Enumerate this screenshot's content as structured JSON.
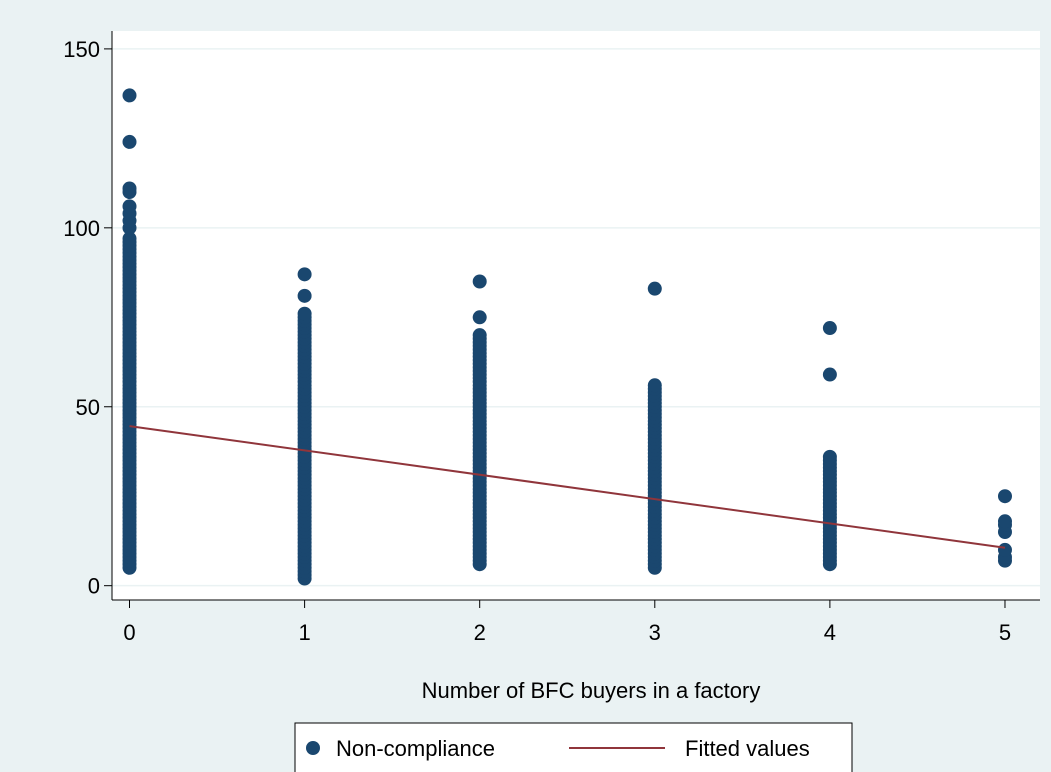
{
  "chart_data": {
    "type": "scatter",
    "xlabel": "Number of BFC buyers in a factory",
    "ylabel": "",
    "xlim": [
      -0.1,
      5.2
    ],
    "ylim": [
      -4,
      155
    ],
    "xticks": [
      0,
      1,
      2,
      3,
      4,
      5
    ],
    "yticks": [
      0,
      50,
      100,
      150
    ],
    "grid": "horizontal",
    "legend_position": "bottom",
    "colors": {
      "background": "#eaf2f3",
      "plot_background": "#ffffff",
      "marker": "#1a476f",
      "fit_line": "#90353b",
      "grid": "#eaf2f3"
    },
    "series": [
      {
        "name": "Non-compliance",
        "kind": "scatter",
        "points": [
          {
            "x": 0,
            "range": [
              5,
              97
            ]
          },
          {
            "x": 0,
            "values": [
              100,
              102,
              104,
              106,
              110,
              111,
              124,
              137
            ]
          },
          {
            "x": 1,
            "range": [
              2,
              76
            ]
          },
          {
            "x": 1,
            "values": [
              81,
              87
            ]
          },
          {
            "x": 2,
            "range": [
              6,
              70
            ]
          },
          {
            "x": 2,
            "values": [
              75,
              85
            ]
          },
          {
            "x": 3,
            "range": [
              5,
              56
            ]
          },
          {
            "x": 3,
            "values": [
              83
            ]
          },
          {
            "x": 4,
            "range": [
              6,
              36
            ]
          },
          {
            "x": 4,
            "values": [
              59,
              72
            ]
          },
          {
            "x": 5,
            "values": [
              7,
              8,
              10,
              15,
              17,
              18,
              25
            ]
          }
        ]
      },
      {
        "name": "Fitted values",
        "kind": "line",
        "x": [
          0,
          5
        ],
        "y": [
          44.6,
          10.6
        ]
      }
    ]
  }
}
